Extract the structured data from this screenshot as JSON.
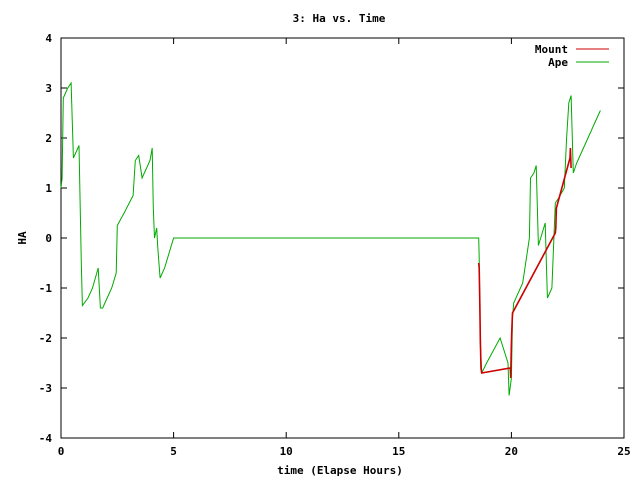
{
  "chart_data": {
    "type": "line",
    "title": "3: Ha vs. Time",
    "xlabel": "time (Elapse Hours)",
    "ylabel": "HA",
    "xlim": [
      0,
      25
    ],
    "ylim": [
      -4,
      4
    ],
    "x_ticks": [
      0,
      5,
      10,
      15,
      20,
      25
    ],
    "y_ticks": [
      -4,
      -3,
      -2,
      -1,
      0,
      1,
      2,
      3,
      4
    ],
    "x_tick_labels": [
      "0",
      "5",
      "10",
      "15",
      "20",
      "25"
    ],
    "y_tick_labels": [
      "-4",
      "-3",
      "-2",
      "-1",
      "0",
      "1",
      "2",
      "3",
      "4"
    ],
    "grid": false,
    "legend_position": "top-right",
    "series": [
      {
        "name": "Mount",
        "color": "#cc0000",
        "points": [
          [
            18.55,
            -0.5
          ],
          [
            18.57,
            -0.6
          ],
          [
            18.6,
            -1.4
          ],
          [
            18.62,
            -2.0
          ],
          [
            18.65,
            -2.6
          ],
          [
            18.68,
            -2.7
          ],
          [
            19.95,
            -2.6
          ],
          [
            19.97,
            -2.8
          ],
          [
            20.0,
            -2.1
          ],
          [
            20.02,
            -1.8
          ],
          [
            20.05,
            -1.5
          ],
          [
            21.95,
            0.1
          ],
          [
            21.97,
            0.2
          ],
          [
            22.0,
            0.6
          ],
          [
            22.6,
            1.6
          ],
          [
            22.62,
            1.8
          ],
          [
            22.65,
            1.4
          ]
        ]
      },
      {
        "name": "Ape",
        "color": "#00aa00",
        "points": [
          [
            0.0,
            1.0
          ],
          [
            0.05,
            1.2
          ],
          [
            0.1,
            2.8
          ],
          [
            0.2,
            2.9
          ],
          [
            0.3,
            3.0
          ],
          [
            0.45,
            3.1
          ],
          [
            0.55,
            1.6
          ],
          [
            0.7,
            1.75
          ],
          [
            0.8,
            1.85
          ],
          [
            0.9,
            -0.5
          ],
          [
            0.95,
            -1.35
          ],
          [
            1.2,
            -1.2
          ],
          [
            1.4,
            -1.0
          ],
          [
            1.65,
            -0.6
          ],
          [
            1.75,
            -1.4
          ],
          [
            1.85,
            -1.4
          ],
          [
            2.0,
            -1.25
          ],
          [
            2.25,
            -1.0
          ],
          [
            2.45,
            -0.7
          ],
          [
            2.5,
            0.25
          ],
          [
            2.8,
            0.5
          ],
          [
            3.2,
            0.85
          ],
          [
            3.3,
            1.55
          ],
          [
            3.45,
            1.65
          ],
          [
            3.6,
            1.2
          ],
          [
            3.8,
            1.4
          ],
          [
            3.95,
            1.55
          ],
          [
            4.05,
            1.8
          ],
          [
            4.1,
            0.6
          ],
          [
            4.15,
            0.0
          ],
          [
            4.25,
            0.2
          ],
          [
            4.3,
            -0.2
          ],
          [
            4.4,
            -0.8
          ],
          [
            4.6,
            -0.6
          ],
          [
            5.0,
            0.0
          ],
          [
            18.55,
            0.0
          ],
          [
            18.57,
            -0.4
          ],
          [
            18.6,
            -1.5
          ],
          [
            18.62,
            -2.1
          ],
          [
            18.68,
            -2.7
          ],
          [
            18.9,
            -2.5
          ],
          [
            19.5,
            -2.0
          ],
          [
            19.85,
            -2.5
          ],
          [
            19.9,
            -3.15
          ],
          [
            20.0,
            -2.8
          ],
          [
            20.05,
            -1.6
          ],
          [
            20.1,
            -1.3
          ],
          [
            20.5,
            -0.9
          ],
          [
            20.8,
            0.0
          ],
          [
            20.85,
            1.2
          ],
          [
            21.0,
            1.3
          ],
          [
            21.1,
            1.45
          ],
          [
            21.2,
            -0.15
          ],
          [
            21.5,
            0.3
          ],
          [
            21.6,
            -1.2
          ],
          [
            21.8,
            -1.0
          ],
          [
            21.95,
            0.7
          ],
          [
            22.1,
            0.8
          ],
          [
            22.35,
            1.0
          ],
          [
            22.45,
            2.0
          ],
          [
            22.55,
            2.7
          ],
          [
            22.65,
            2.85
          ],
          [
            22.75,
            1.3
          ],
          [
            22.9,
            1.5
          ],
          [
            23.1,
            1.7
          ],
          [
            23.4,
            2.0
          ],
          [
            23.7,
            2.3
          ],
          [
            23.85,
            2.45
          ],
          [
            23.95,
            2.55
          ]
        ]
      }
    ]
  }
}
